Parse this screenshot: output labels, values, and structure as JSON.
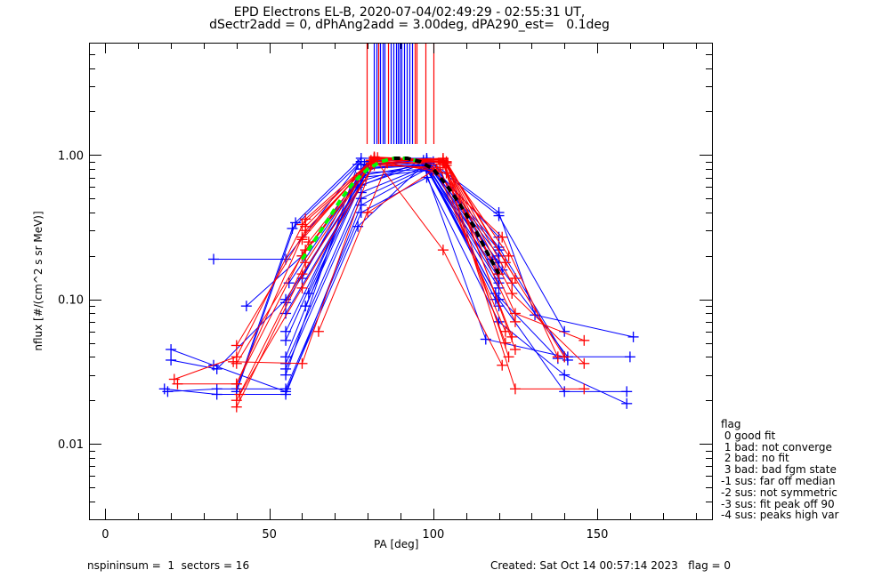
{
  "title_line1": "EPD Electrons EL-B, 2020-07-04/02:49:29 - 02:55:31 UT,",
  "title_line2": "dSectr2add = 0, dPhAng2add = 3.00deg, dPA290_est=   0.1deg",
  "footer_left": "nspininsum =  1  sectors = 16",
  "footer_right": "Created: Sat Oct 14 00:57:14 2023   flag = 0",
  "legend": {
    "title": "flag",
    "items": [
      " 0 good fit",
      " 1 bad: not converge",
      " 2 bad: no fit",
      " 3 bad: bad fgm state",
      "-1 sus: far off median",
      "-2 sus: not symmetric",
      "-3 sus: fit peak off 90",
      "-4 sus: peaks high var"
    ]
  },
  "colors": {
    "blue": "#0000ff",
    "red": "#ff0000",
    "green": "#00ff00",
    "black": "#000000"
  },
  "chart_data": {
    "type": "line",
    "title": "EPD Electrons EL-B, 2020-07-04/02:49:29 - 02:55:31 UT,",
    "xlabel": "PA [deg]",
    "ylabel": "nflux [#/(cm^2 s sr MeV)]",
    "xlim": [
      -5,
      185
    ],
    "ylim": [
      0.003,
      6.0
    ],
    "yscale": "log",
    "xticks": [
      0,
      50,
      100,
      150
    ],
    "xtick_labels": [
      "0",
      "50",
      "100",
      "150"
    ],
    "yticks": [
      0.01,
      0.1,
      1.0
    ],
    "ytick_labels": [
      "0.01",
      "0.10",
      "1.00"
    ],
    "vertical_markers": [
      {
        "x": 79.7,
        "color": "red"
      },
      {
        "x": 81.9,
        "color": "blue"
      },
      {
        "x": 82.7,
        "color": "blue"
      },
      {
        "x": 83.2,
        "color": "red"
      },
      {
        "x": 83.8,
        "color": "blue"
      },
      {
        "x": 84.6,
        "color": "blue"
      },
      {
        "x": 85.1,
        "color": "blue"
      },
      {
        "x": 86.2,
        "color": "red"
      },
      {
        "x": 87.0,
        "color": "blue"
      },
      {
        "x": 87.8,
        "color": "blue"
      },
      {
        "x": 88.6,
        "color": "blue"
      },
      {
        "x": 89.2,
        "color": "blue"
      },
      {
        "x": 89.7,
        "color": "blue"
      },
      {
        "x": 90.3,
        "color": "blue"
      },
      {
        "x": 91.1,
        "color": "blue"
      },
      {
        "x": 91.9,
        "color": "blue"
      },
      {
        "x": 92.7,
        "color": "blue"
      },
      {
        "x": 93.5,
        "color": "blue"
      },
      {
        "x": 94.3,
        "color": "red"
      },
      {
        "x": 94.9,
        "color": "red"
      },
      {
        "x": 97.6,
        "color": "red"
      },
      {
        "x": 100.0,
        "color": "red"
      }
    ],
    "series": [
      {
        "name": "b1",
        "color": "blue",
        "x": [
          33,
          55,
          78,
          98,
          120,
          140
        ],
        "y": [
          0.19,
          0.19,
          0.9,
          0.93,
          0.38,
          0.06
        ]
      },
      {
        "name": "b2",
        "color": "blue",
        "x": [
          18,
          34,
          55,
          78,
          98,
          120,
          140,
          159
        ],
        "y": [
          0.024,
          0.022,
          0.022,
          0.45,
          0.8,
          0.1,
          0.023,
          0.023
        ]
      },
      {
        "name": "b3",
        "color": "blue",
        "x": [
          19,
          34,
          55,
          78,
          98,
          120,
          140,
          159
        ],
        "y": [
          0.023,
          0.024,
          0.024,
          0.4,
          0.7,
          0.07,
          0.03,
          0.019
        ]
      },
      {
        "name": "b4",
        "color": "blue",
        "x": [
          20,
          33,
          55,
          77,
          97,
          116,
          140,
          160
        ],
        "y": [
          0.045,
          0.035,
          0.023,
          0.32,
          0.85,
          0.053,
          0.04,
          0.04
        ]
      },
      {
        "name": "b5",
        "color": "blue",
        "x": [
          20,
          34,
          55,
          77,
          97,
          119,
          138
        ],
        "y": [
          0.038,
          0.033,
          0.1,
          0.6,
          0.92,
          0.11,
          0.039
        ]
      },
      {
        "name": "b6",
        "color": "blue",
        "x": [
          43,
          60,
          80,
          100,
          121,
          141
        ],
        "y": [
          0.09,
          0.2,
          0.85,
          0.9,
          0.16,
          0.04
        ]
      },
      {
        "name": "b7",
        "color": "blue",
        "x": [
          40,
          58,
          78,
          98,
          120,
          131,
          161
        ],
        "y": [
          0.023,
          0.34,
          0.95,
          0.95,
          0.4,
          0.078,
          0.055
        ]
      },
      {
        "name": "b8",
        "color": "blue",
        "x": [
          40,
          57,
          78,
          98,
          120,
          141
        ],
        "y": [
          0.024,
          0.31,
          0.9,
          0.92,
          0.23,
          0.038
        ]
      },
      {
        "name": "b9",
        "color": "blue",
        "x": [
          55,
          78,
          98,
          120
        ],
        "y": [
          0.04,
          0.8,
          0.85,
          0.13
        ]
      },
      {
        "name": "b10",
        "color": "blue",
        "x": [
          55,
          78,
          98,
          120
        ],
        "y": [
          0.052,
          0.75,
          0.8,
          0.12
        ]
      },
      {
        "name": "b11",
        "color": "blue",
        "x": [
          55,
          78,
          98,
          120
        ],
        "y": [
          0.06,
          0.7,
          0.78,
          0.15
        ]
      },
      {
        "name": "b12",
        "color": "blue",
        "x": [
          55,
          78,
          98,
          120
        ],
        "y": [
          0.08,
          0.62,
          0.88,
          0.18
        ]
      },
      {
        "name": "b13",
        "color": "blue",
        "x": [
          55,
          78,
          98,
          120
        ],
        "y": [
          0.095,
          0.66,
          0.9,
          0.2
        ]
      },
      {
        "name": "b14",
        "color": "blue",
        "x": [
          56,
          78,
          98,
          120
        ],
        "y": [
          0.13,
          0.72,
          0.86,
          0.22
        ]
      },
      {
        "name": "b15",
        "color": "blue",
        "x": [
          55,
          78,
          98,
          119
        ],
        "y": [
          0.033,
          0.5,
          0.82,
          0.1
        ]
      },
      {
        "name": "b16",
        "color": "blue",
        "x": [
          55,
          78,
          98,
          120
        ],
        "y": [
          0.036,
          0.55,
          0.84,
          0.09
        ]
      },
      {
        "name": "b17",
        "color": "blue",
        "x": [
          55,
          77,
          98,
          120
        ],
        "y": [
          0.03,
          0.86,
          0.92,
          0.27
        ]
      },
      {
        "name": "b18",
        "color": "blue",
        "x": [
          61,
          80,
          98,
          120
        ],
        "y": [
          0.09,
          0.8,
          0.9,
          0.16
        ]
      },
      {
        "name": "b19",
        "color": "blue",
        "x": [
          62,
          80,
          98,
          120
        ],
        "y": [
          0.11,
          0.82,
          0.86,
          0.14
        ]
      },
      {
        "name": "b20",
        "color": "blue",
        "x": [
          60,
          79,
          97,
          118
        ],
        "y": [
          0.14,
          0.86,
          0.89,
          0.19
        ]
      },
      {
        "name": "r1",
        "color": "red",
        "x": [
          22,
          40,
          60,
          82,
          103,
          125,
          146
        ],
        "y": [
          0.026,
          0.026,
          0.27,
          0.97,
          0.88,
          0.024,
          0.024
        ]
      },
      {
        "name": "r2",
        "color": "red",
        "x": [
          21,
          40,
          61,
          82,
          104,
          125
        ],
        "y": [
          0.028,
          0.04,
          0.36,
          0.95,
          0.9,
          0.14
        ]
      },
      {
        "name": "r3",
        "color": "red",
        "x": [
          40,
          61,
          82,
          103,
          124,
          146
        ],
        "y": [
          0.036,
          0.22,
          0.9,
          0.94,
          0.11,
          0.036
        ]
      },
      {
        "name": "r4",
        "color": "red",
        "x": [
          40,
          61,
          82,
          104,
          125,
          146
        ],
        "y": [
          0.048,
          0.3,
          0.93,
          0.85,
          0.08,
          0.052
        ]
      },
      {
        "name": "r5",
        "color": "red",
        "x": [
          40,
          61,
          81,
          101,
          122
        ],
        "y": [
          0.02,
          0.18,
          0.88,
          0.8,
          0.06
        ]
      },
      {
        "name": "r6",
        "color": "red",
        "x": [
          40,
          60,
          82,
          102,
          122
        ],
        "y": [
          0.018,
          0.15,
          0.85,
          0.82,
          0.05
        ]
      },
      {
        "name": "r7",
        "color": "red",
        "x": [
          41,
          60,
          82,
          103,
          123
        ],
        "y": [
          0.022,
          0.12,
          0.87,
          0.9,
          0.04
        ]
      },
      {
        "name": "r8",
        "color": "red",
        "x": [
          40,
          62,
          82,
          103,
          123
        ],
        "y": [
          0.026,
          0.25,
          0.93,
          0.92,
          0.2
        ]
      },
      {
        "name": "r9",
        "color": "red",
        "x": [
          39,
          60,
          82,
          103,
          121
        ],
        "y": [
          0.037,
          0.036,
          0.95,
          0.22,
          0.035
        ]
      },
      {
        "name": "r10",
        "color": "red",
        "x": [
          60,
          82,
          103,
          120
        ],
        "y": [
          0.2,
          0.9,
          0.86,
          0.15
        ]
      },
      {
        "name": "r11",
        "color": "red",
        "x": [
          60,
          81,
          103,
          124
        ],
        "y": [
          0.26,
          0.92,
          0.95,
          0.13
        ]
      },
      {
        "name": "r12",
        "color": "red",
        "x": [
          65,
          86,
          104,
          125
        ],
        "y": [
          0.06,
          0.88,
          0.75,
          0.07
        ]
      },
      {
        "name": "r13",
        "color": "red",
        "x": [
          60,
          83,
          104,
          125
        ],
        "y": [
          0.33,
          0.96,
          0.88,
          0.045
        ]
      },
      {
        "name": "r14",
        "color": "red",
        "x": [
          61,
          82,
          103,
          124
        ],
        "y": [
          0.32,
          0.97,
          0.92,
          0.055
        ]
      },
      {
        "name": "r15",
        "color": "red",
        "x": [
          80,
          100,
          121,
          138
        ],
        "y": [
          0.4,
          0.78,
          0.27,
          0.04
        ]
      },
      {
        "name": "r16",
        "color": "red",
        "x": [
          82,
          104,
          122,
          140
        ],
        "y": [
          0.95,
          0.88,
          0.18,
          0.04
        ]
      }
    ],
    "fit_left_green": {
      "color": "green",
      "x": [
        60,
        64,
        68,
        72,
        76,
        80,
        84,
        88,
        92,
        96
      ],
      "y": [
        0.19,
        0.26,
        0.36,
        0.5,
        0.66,
        0.8,
        0.9,
        0.95,
        0.95,
        0.9
      ]
    },
    "fit_right_black": {
      "color": "black",
      "x": [
        88,
        92,
        96,
        100,
        104,
        108,
        112,
        116,
        120
      ],
      "y": [
        0.95,
        0.95,
        0.9,
        0.8,
        0.62,
        0.46,
        0.33,
        0.22,
        0.15
      ]
    }
  }
}
